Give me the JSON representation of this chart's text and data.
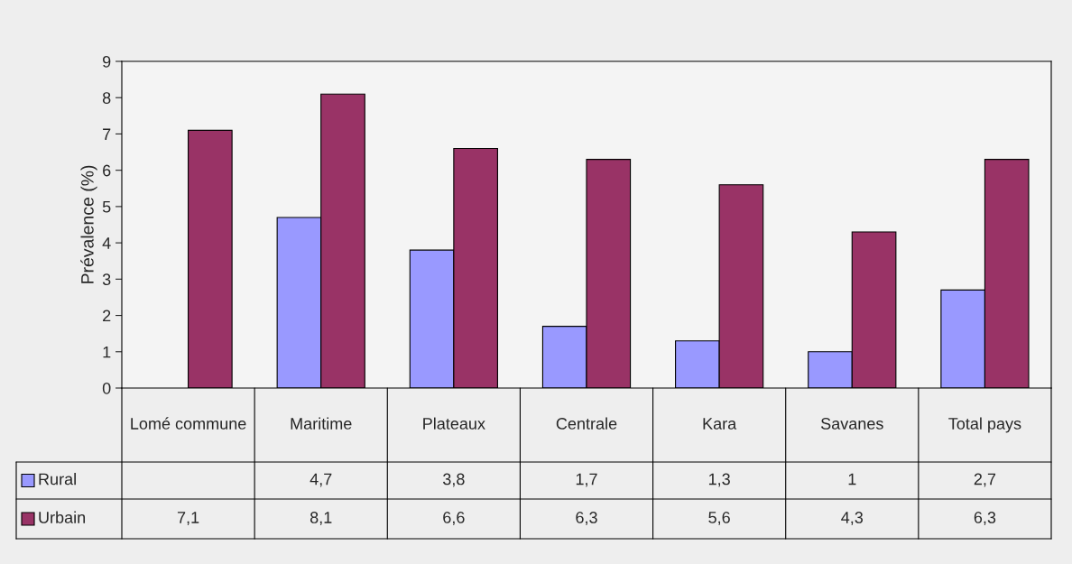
{
  "chart_data": {
    "type": "bar",
    "ylabel": "Prévalence (%)",
    "categories": [
      "Lomé commune",
      "Maritime",
      "Plateaux",
      "Centrale",
      "Kara",
      "Savanes",
      "Total pays"
    ],
    "series": [
      {
        "name": "Rural",
        "color": "#9999ff",
        "values": [
          null,
          4.7,
          3.8,
          1.7,
          1.3,
          1,
          2.7
        ],
        "value_labels": [
          null,
          "4,7",
          "3,8",
          "1,7",
          "1,3",
          "1",
          "2,7"
        ]
      },
      {
        "name": "Urbain",
        "color": "#993366",
        "values": [
          7.1,
          8.1,
          6.6,
          6.3,
          5.6,
          4.3,
          6.3
        ],
        "value_labels": [
          "7,1",
          "8,1",
          "6,6",
          "6,3",
          "5,6",
          "4,3",
          "6,3"
        ]
      }
    ],
    "ylim": [
      0,
      9
    ],
    "yticks": [
      0,
      1,
      2,
      3,
      4,
      5,
      6,
      7,
      8,
      9
    ],
    "grid": false,
    "legend": "bottom"
  }
}
